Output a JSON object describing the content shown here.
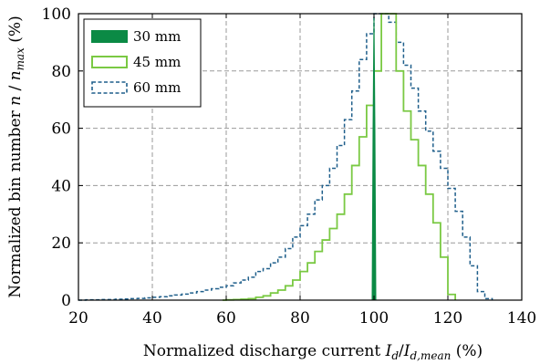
{
  "chart_data": {
    "type": "line",
    "title": "",
    "xlabel": "Normalized discharge current I_d / I_d,mean (%)",
    "ylabel": "Normalized bin number n / n_max (%)",
    "xlabel_parts": {
      "prefix": "Normalized discharge current ",
      "sym1": "I",
      "sub1": "d",
      "slash": "/",
      "sym2": "I",
      "sub2": "d,mean",
      "suffix": " (%)"
    },
    "ylabel_parts": {
      "prefix": "Normalized bin number ",
      "sym1": "n",
      "slash": " / ",
      "sym2": "n",
      "sub2": "max",
      "suffix": " (%)"
    },
    "xlim": [
      20,
      140
    ],
    "ylim": [
      0,
      100
    ],
    "xticks": [
      "20",
      "40",
      "60",
      "80",
      "100",
      "120",
      "140"
    ],
    "yticks": [
      "0",
      "20",
      "40",
      "60",
      "80",
      "100"
    ],
    "grid": true,
    "legend_position": "top-left",
    "series": [
      {
        "name": "30 mm",
        "style": "filled",
        "color": "#0b8a45",
        "x": [
          99.5,
          99.75,
          100,
          100.25,
          100.5
        ],
        "y": [
          0,
          60,
          100,
          60,
          0
        ]
      },
      {
        "name": "45 mm",
        "style": "step-solid",
        "color": "#7ac943",
        "x": [
          59,
          60,
          62,
          64,
          66,
          68,
          70,
          72,
          74,
          76,
          78,
          80,
          82,
          84,
          86,
          88,
          90,
          92,
          94,
          96,
          98,
          100,
          102,
          104,
          106,
          108,
          110,
          112,
          114,
          116,
          118,
          120,
          122
        ],
        "y": [
          0,
          0.1,
          0.2,
          0.3,
          0.5,
          1,
          1.5,
          2.5,
          3.5,
          5,
          7,
          10,
          13,
          17,
          21,
          25,
          30,
          37,
          47,
          57,
          68,
          80,
          100,
          100,
          80,
          66,
          56,
          47,
          37,
          27,
          15,
          2,
          0
        ]
      },
      {
        "name": "60 mm",
        "style": "step-dashed",
        "color": "#1f5f8b",
        "x": [
          20,
          22,
          24,
          26,
          28,
          30,
          32,
          34,
          36,
          38,
          40,
          42,
          44,
          46,
          48,
          50,
          52,
          54,
          56,
          58,
          60,
          62,
          64,
          66,
          68,
          70,
          72,
          74,
          76,
          78,
          80,
          82,
          84,
          86,
          88,
          90,
          92,
          94,
          96,
          98,
          100,
          102,
          104,
          106,
          108,
          110,
          112,
          114,
          116,
          118,
          120,
          122,
          124,
          126,
          128,
          130,
          132
        ],
        "y": [
          0,
          0.1,
          0.1,
          0.2,
          0.2,
          0.3,
          0.4,
          0.5,
          0.6,
          0.8,
          1,
          1.2,
          1.5,
          1.8,
          2.1,
          2.5,
          3,
          3.5,
          4,
          4.5,
          5,
          6,
          7,
          8,
          10,
          11,
          13,
          15,
          18,
          22,
          26,
          30,
          35,
          40,
          46,
          54,
          63,
          73,
          84,
          93,
          100,
          100,
          97,
          90,
          82,
          74,
          66,
          59,
          52,
          46,
          39,
          31,
          22,
          12,
          3,
          0.5,
          0
        ]
      }
    ]
  }
}
